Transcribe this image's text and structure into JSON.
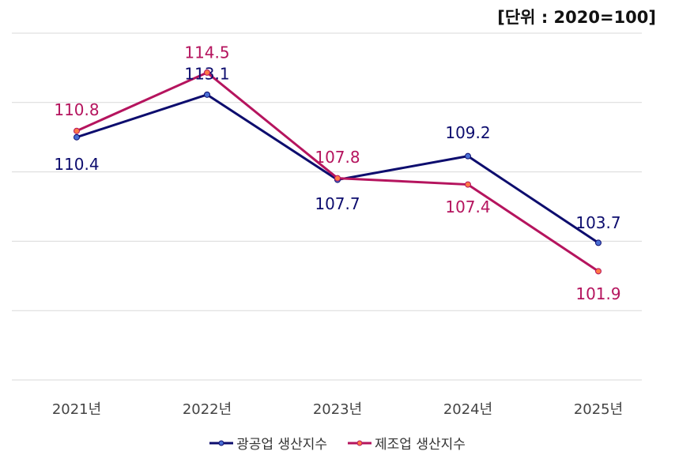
{
  "unit_label": "[단위 : 2020=100]",
  "colors": {
    "series0": "#0d0d6e",
    "series1": "#b5145e",
    "marker0": "#4a6fd4",
    "marker1": "#ff7a45",
    "grid": "#d9d9d9",
    "tick": "#444444"
  },
  "chart_data": {
    "type": "line",
    "categories": [
      "2021년",
      "2022년",
      "2023년",
      "2024년",
      "2025년"
    ],
    "ylim": [
      95,
      117
    ],
    "grid": true,
    "legend": "bottom",
    "series": [
      {
        "name": "광공업 생산지수",
        "values": [
          110.4,
          113.1,
          107.7,
          109.2,
          103.7
        ],
        "labels": [
          "110.4",
          "113.1",
          "107.7",
          "109.2",
          "103.7"
        ]
      },
      {
        "name": "제조업 생산지수",
        "values": [
          110.8,
          114.5,
          107.8,
          107.4,
          101.9
        ],
        "labels": [
          "110.8",
          "114.5",
          "107.8",
          "107.4",
          "101.9"
        ]
      }
    ]
  }
}
